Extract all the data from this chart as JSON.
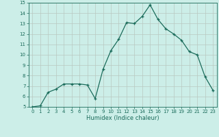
{
  "x": [
    0,
    1,
    2,
    3,
    4,
    5,
    6,
    7,
    8,
    9,
    10,
    11,
    12,
    13,
    14,
    15,
    16,
    17,
    18,
    19,
    20,
    21,
    22,
    23
  ],
  "y": [
    5.0,
    5.1,
    6.4,
    6.7,
    7.2,
    7.2,
    7.2,
    7.1,
    5.8,
    8.6,
    10.4,
    11.5,
    13.1,
    13.0,
    13.7,
    14.8,
    13.4,
    12.5,
    12.0,
    11.4,
    10.3,
    10.0,
    7.9,
    6.6
  ],
  "xlim": [
    -0.5,
    23.5
  ],
  "ylim": [
    5,
    15
  ],
  "yticks": [
    5,
    6,
    7,
    8,
    9,
    10,
    11,
    12,
    13,
    14,
    15
  ],
  "xticks": [
    0,
    1,
    2,
    3,
    4,
    5,
    6,
    7,
    8,
    9,
    10,
    11,
    12,
    13,
    14,
    15,
    16,
    17,
    18,
    19,
    20,
    21,
    22,
    23
  ],
  "xlabel": "Humidex (Indice chaleur)",
  "line_color": "#1a6b5a",
  "marker": "+",
  "bg_color": "#cceee8",
  "grid_color": "#b8c8c0",
  "title": ""
}
